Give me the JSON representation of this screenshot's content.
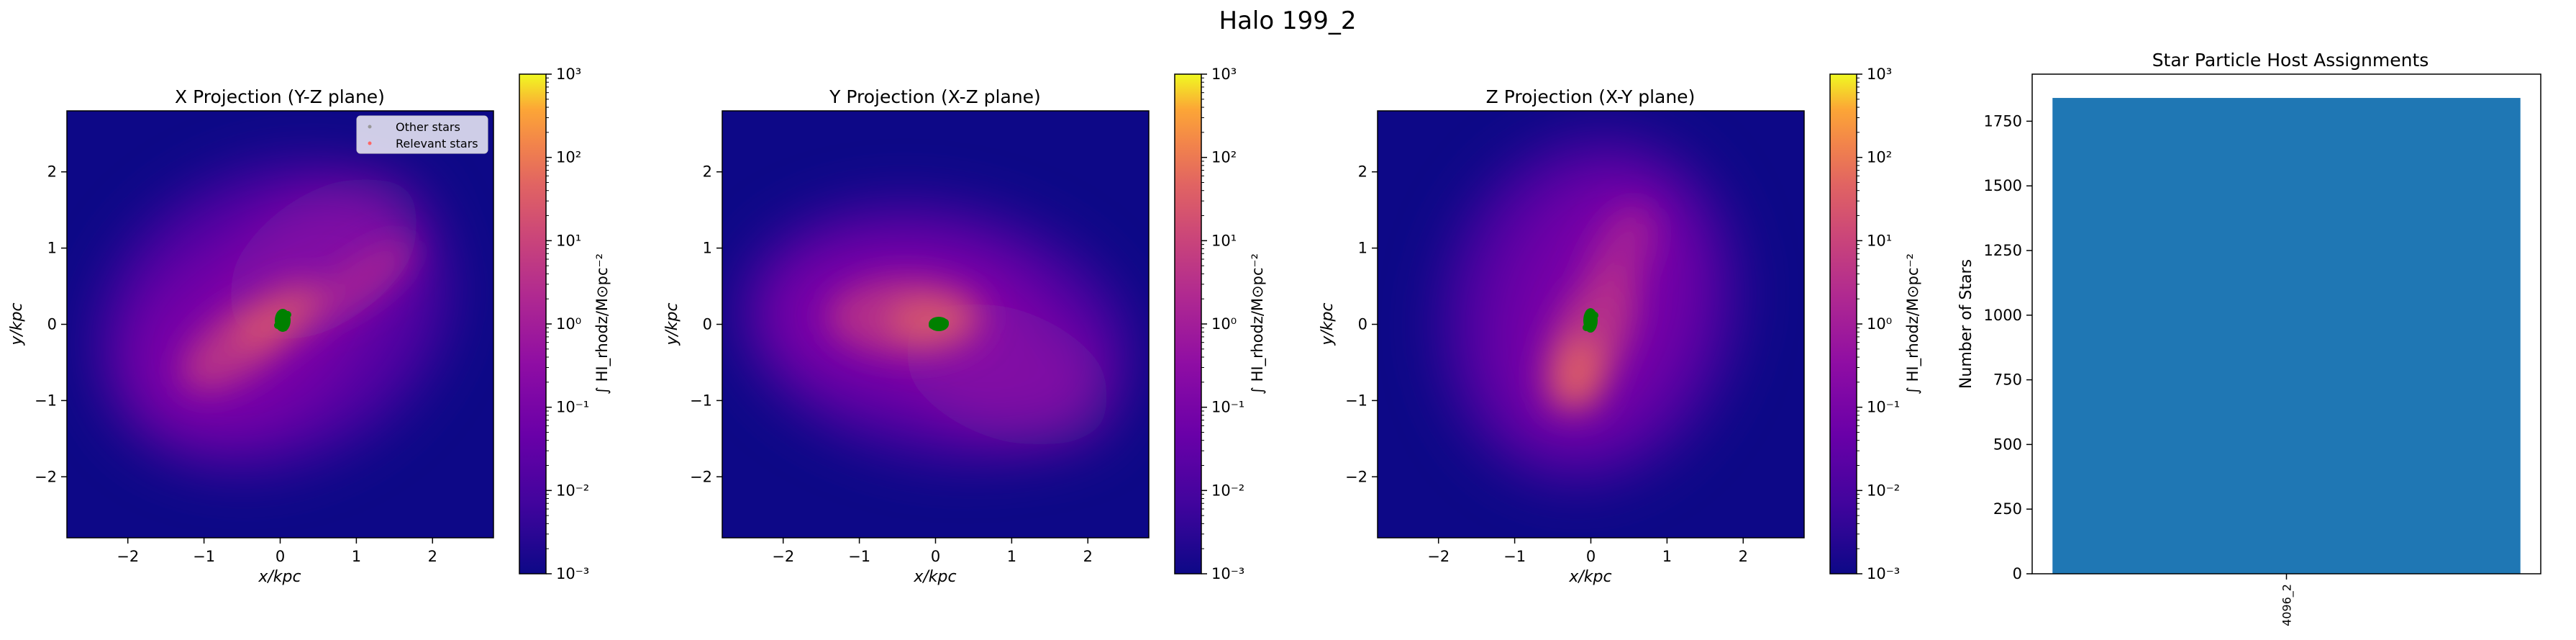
{
  "figure": {
    "suptitle": "Halo 199_2"
  },
  "panels": [
    {
      "key": "x",
      "title": "X Projection (Y-Z plane)",
      "xlabel": "x/kpc",
      "ylabel": "y/kpc",
      "legend": [
        "Other stars",
        "Relevant stars"
      ]
    },
    {
      "key": "y",
      "title": "Y Projection (X-Z plane)",
      "xlabel": "x/kpc",
      "ylabel": "y/kpc",
      "legend": []
    },
    {
      "key": "z",
      "title": "Z Projection (X-Y plane)",
      "xlabel": "x/kpc",
      "ylabel": "y/kpc",
      "legend": []
    }
  ],
  "colorbar": {
    "label": "∫ HI_rhodz/M⊙pc⁻²",
    "tick_labels": [
      "10⁻³",
      "10⁻²",
      "10⁻¹",
      "10⁰",
      "10¹",
      "10²",
      "10³"
    ],
    "colormap": "plasma",
    "scale": "log",
    "range": [
      0.001,
      1000
    ]
  },
  "colors": {
    "plasma_low": "#0d0887",
    "plasma_mid": "#cc4778",
    "plasma_high": "#f0f921",
    "relevant_stars": "#008000",
    "bar": "#1f77b4"
  },
  "chart_data": [
    {
      "type": "heatmap",
      "title": "X Projection (Y-Z plane)",
      "xlabel": "x/kpc",
      "ylabel": "y/kpc",
      "xlim": [
        -2.8,
        2.8
      ],
      "ylim": [
        -2.8,
        2.8
      ],
      "xticks": [
        -2,
        -1,
        0,
        1,
        2
      ],
      "yticks": [
        -2,
        -1,
        0,
        1,
        2
      ],
      "colorscale": "log",
      "crange": [
        0.001,
        1000
      ],
      "legend_location": "upper-right",
      "relevant_star_center": [
        0.0,
        0.05
      ]
    },
    {
      "type": "heatmap",
      "title": "Y Projection (X-Z plane)",
      "xlabel": "x/kpc",
      "ylabel": "y/kpc",
      "xlim": [
        -2.8,
        2.8
      ],
      "ylim": [
        -2.8,
        2.8
      ],
      "xticks": [
        -2,
        -1,
        0,
        1,
        2
      ],
      "yticks": [
        -2,
        -1,
        0,
        1,
        2
      ],
      "colorscale": "log",
      "crange": [
        0.001,
        1000
      ],
      "relevant_star_center": [
        0.02,
        0.0
      ]
    },
    {
      "type": "heatmap",
      "title": "Z Projection (X-Y plane)",
      "xlabel": "x/kpc",
      "ylabel": "y/kpc",
      "xlim": [
        -2.8,
        2.8
      ],
      "ylim": [
        -2.8,
        2.8
      ],
      "xticks": [
        -2,
        -1,
        0,
        1,
        2
      ],
      "yticks": [
        -2,
        -1,
        0,
        1,
        2
      ],
      "colorscale": "log",
      "crange": [
        0.001,
        1000
      ],
      "relevant_star_center": [
        0.0,
        0.05
      ]
    },
    {
      "type": "bar",
      "title": "Star Particle Host Assignments",
      "categories": [
        "4096_2"
      ],
      "values": [
        1840
      ],
      "xlabel": "",
      "ylabel": "Number of Stars",
      "ylim": [
        0,
        1932
      ],
      "yticks": [
        0,
        250,
        500,
        750,
        1000,
        1250,
        1500,
        1750
      ]
    }
  ]
}
